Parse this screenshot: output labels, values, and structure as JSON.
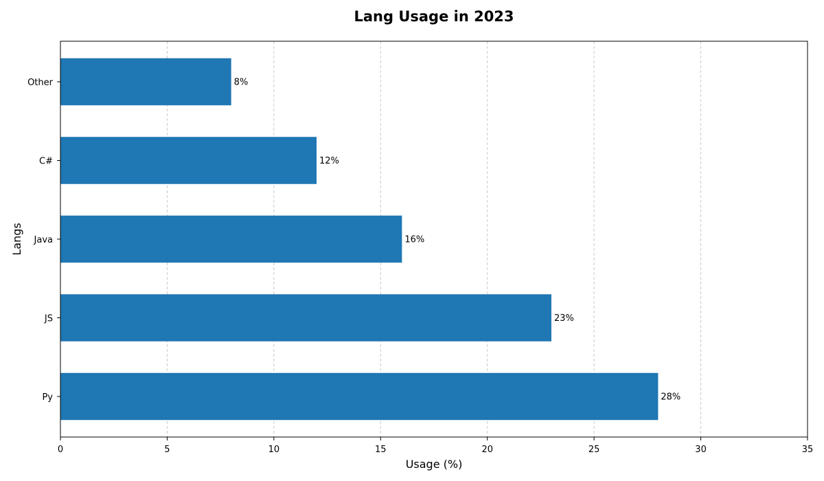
{
  "chart_data": {
    "type": "bar",
    "orientation": "horizontal",
    "title": "Lang Usage in 2023",
    "xlabel": "Usage (%)",
    "ylabel": "Langs",
    "categories": [
      "Py",
      "JS",
      "Java",
      "C#",
      "Other"
    ],
    "values": [
      28,
      23,
      16,
      12,
      8
    ],
    "data_labels": [
      "28%",
      "23%",
      "16%",
      "12%",
      "8%"
    ],
    "xlim": [
      0,
      35
    ],
    "xticks": [
      0,
      5,
      10,
      15,
      20,
      25,
      30,
      35
    ],
    "grid": {
      "x": true,
      "y": false,
      "style": "dashed"
    },
    "colors": {
      "bar": "#1f77b4",
      "grid": "#c8c8c8",
      "axis": "#000000"
    }
  }
}
